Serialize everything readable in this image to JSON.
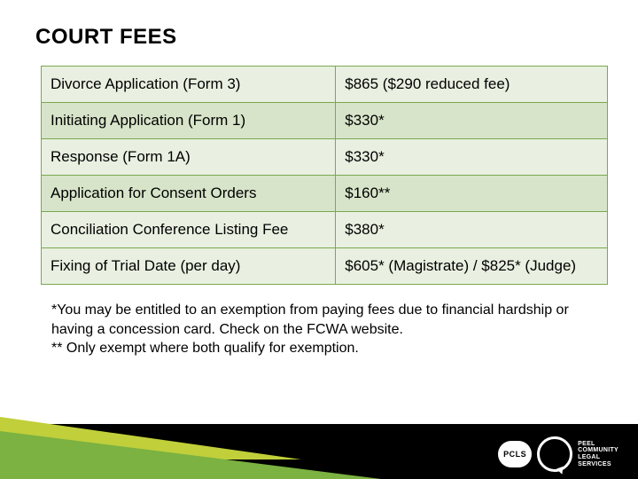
{
  "title": "COURT FEES",
  "table": {
    "columns": [
      "item",
      "fee"
    ],
    "row_band_pattern": [
      "a",
      "b",
      "a",
      "b",
      "a",
      "a"
    ],
    "border_color": "#7aa850",
    "band_colors": {
      "a": "#e9f0e1",
      "b": "#d7e4c9"
    },
    "rows": [
      {
        "item": "Divorce Application (Form 3)",
        "fee": "$865 ($290 reduced fee)"
      },
      {
        "item": "Initiating Application (Form 1)",
        "fee": "$330*"
      },
      {
        "item": "Response (Form 1A)",
        "fee": "$330*"
      },
      {
        "item": "Application for Consent Orders",
        "fee": "$160**"
      },
      {
        "item": "Conciliation Conference Listing Fee",
        "fee": "$380*"
      },
      {
        "item": "Fixing of Trial Date (per day)",
        "fee": "$605* (Magistrate) / $825* (Judge)"
      }
    ]
  },
  "footnote_line1": "*You may be entitled to an exemption from paying fees due to financial hardship or having a concession card. Check on the FCWA website.",
  "footnote_line2": "** Only exempt where both qualify for exemption.",
  "logo": {
    "badge": "PCLS",
    "text_line1": "PEEL",
    "text_line2": "COMMUNITY",
    "text_line3": "LEGAL",
    "text_line4": "SERVICES"
  },
  "colors": {
    "black": "#000000",
    "green": "#7bb241",
    "yellowgreen": "#c0cf3a",
    "white": "#ffffff"
  }
}
